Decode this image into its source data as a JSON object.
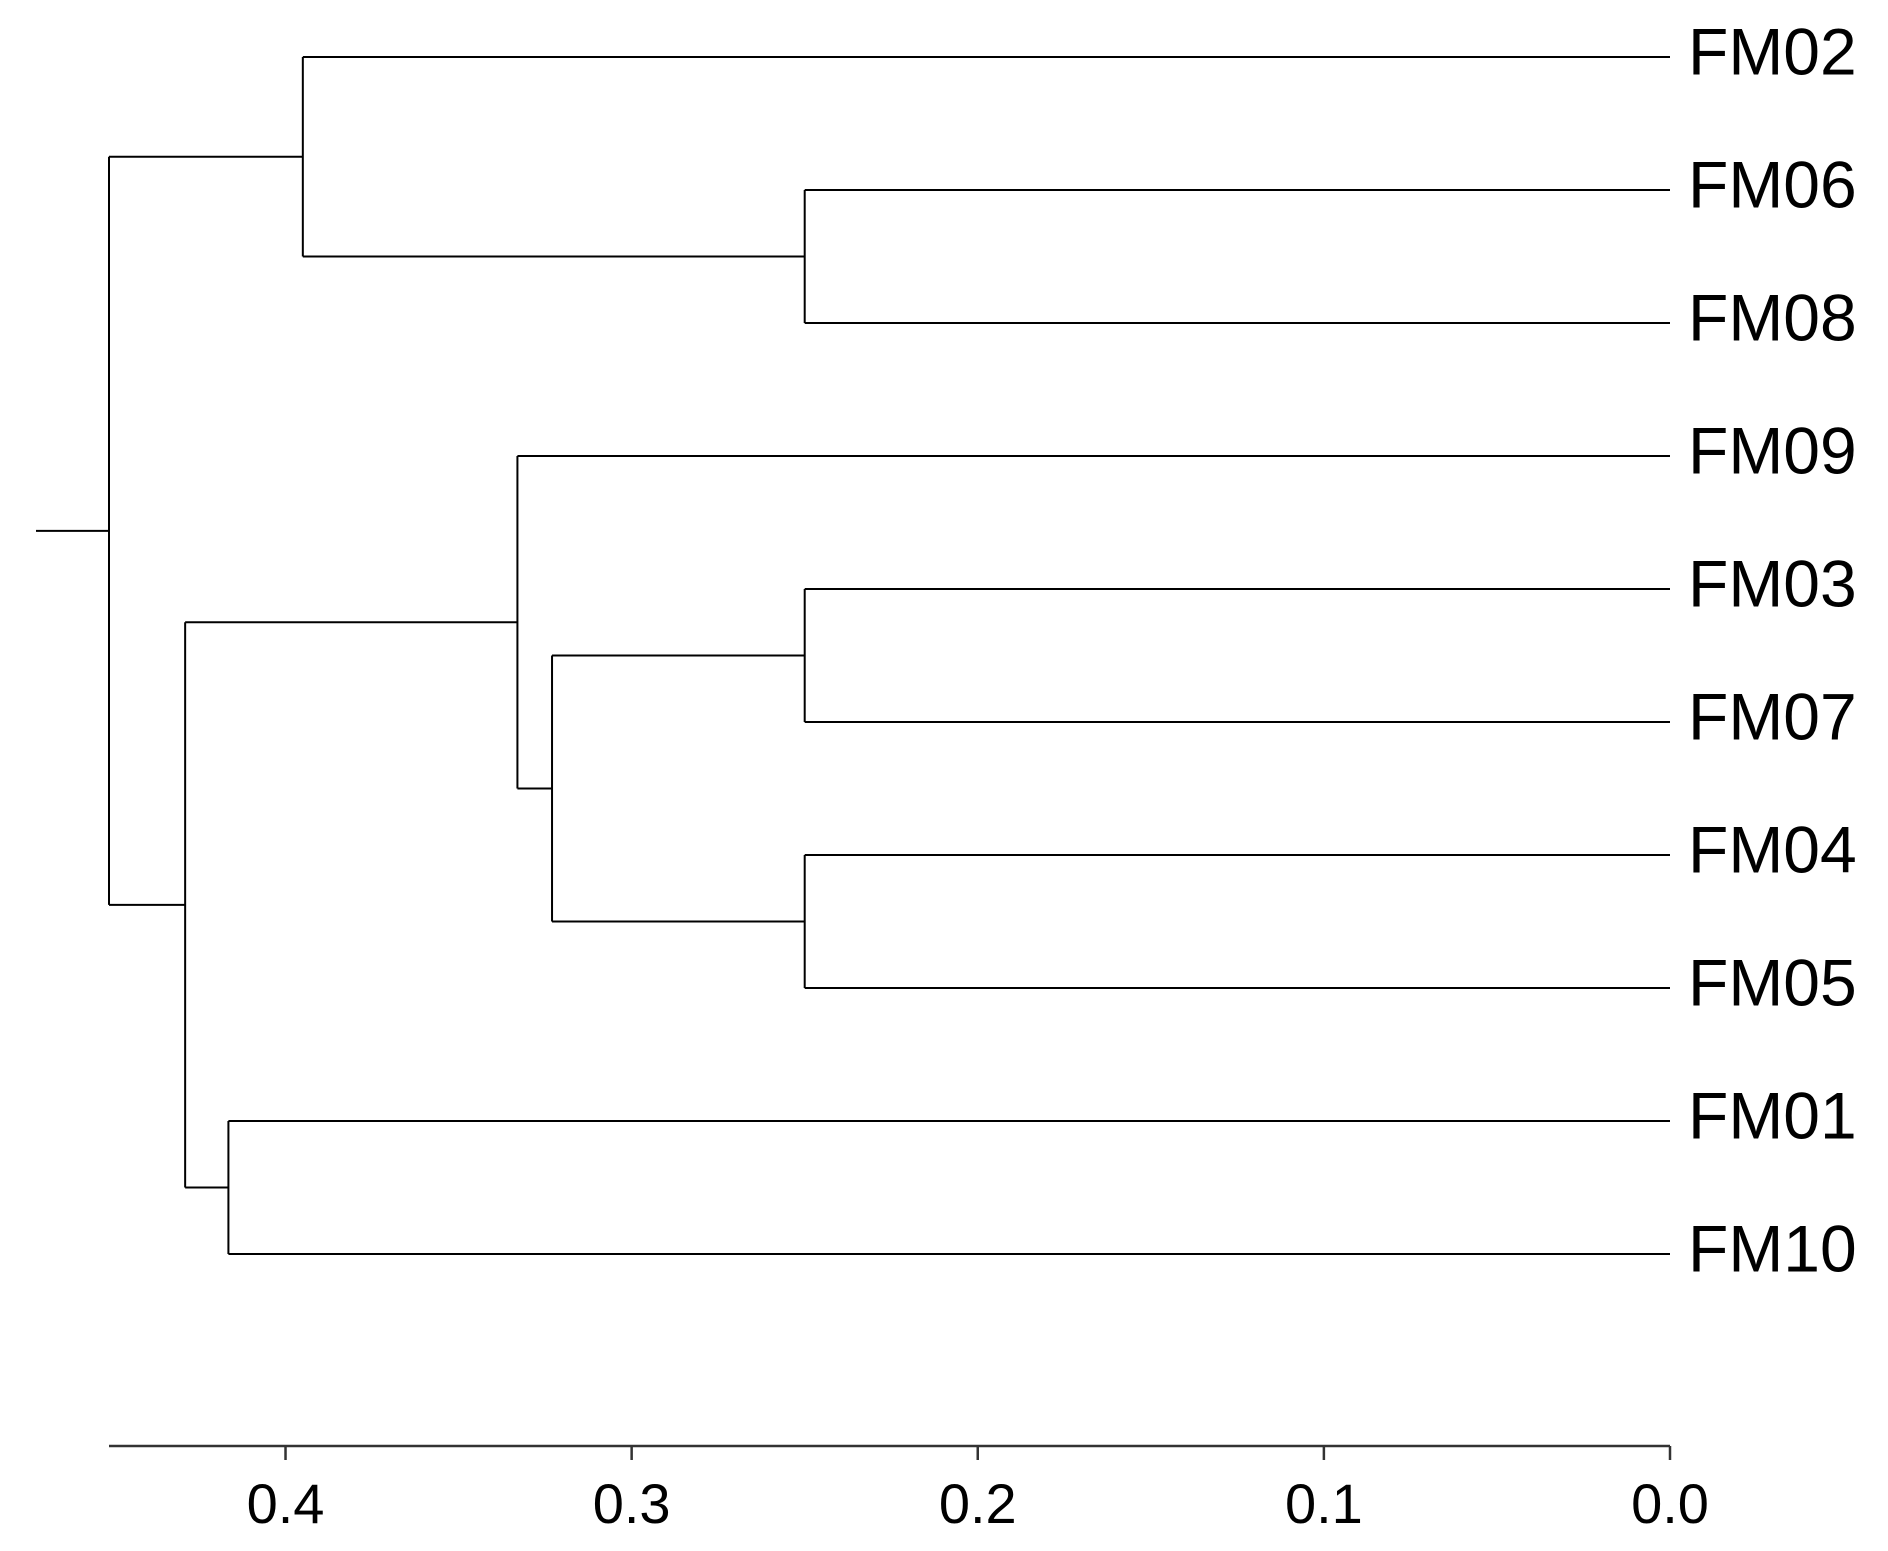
{
  "chart_data": {
    "type": "dendrogram",
    "tree": {
      "height": 0.451,
      "children": [
        {
          "height": 0.395,
          "children": [
            {
              "label": "FM02"
            },
            {
              "height": 0.25,
              "children": [
                {
                  "label": "FM06"
                },
                {
                  "label": "FM08"
                }
              ]
            }
          ]
        },
        {
          "height": 0.429,
          "children": [
            {
              "height": 0.333,
              "children": [
                {
                  "label": "FM09"
                },
                {
                  "height": 0.323,
                  "children": [
                    {
                      "height": 0.25,
                      "children": [
                        {
                          "label": "FM03"
                        },
                        {
                          "label": "FM07"
                        }
                      ]
                    },
                    {
                      "height": 0.25,
                      "children": [
                        {
                          "label": "FM04"
                        },
                        {
                          "label": "FM05"
                        }
                      ]
                    }
                  ]
                }
              ]
            },
            {
              "height": 0.4165,
              "children": [
                {
                  "label": "FM01"
                },
                {
                  "label": "FM10"
                }
              ]
            }
          ]
        }
      ]
    },
    "xlim": [
      0.451,
      0
    ],
    "xticks": [
      0.4,
      0.3,
      0.2,
      0.1,
      {
        "value": 0,
        "label": "0.0"
      }
    ],
    "color": "#000000"
  }
}
